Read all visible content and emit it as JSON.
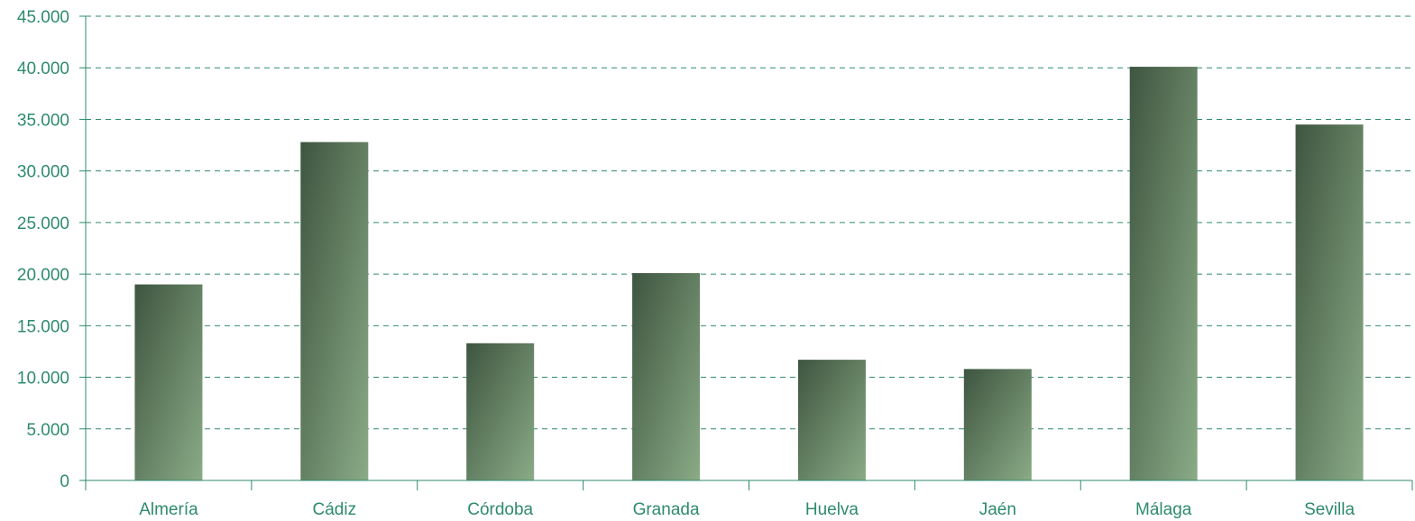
{
  "chart_data": {
    "type": "bar",
    "categories": [
      "Almería",
      "Cádiz",
      "Córdoba",
      "Granada",
      "Huelva",
      "Jaén",
      "Málaga",
      "Sevilla"
    ],
    "values": [
      19000,
      32800,
      13300,
      20100,
      11700,
      10800,
      40100,
      34500
    ],
    "ylim": [
      0,
      45000
    ],
    "yticks": [
      0,
      5000,
      10000,
      15000,
      20000,
      25000,
      30000,
      35000,
      40000,
      45000
    ],
    "ytick_labels": [
      "0",
      "5.000",
      "10.000",
      "15.000",
      "20.000",
      "25.000",
      "30.000",
      "35.000",
      "40.000",
      "45.000"
    ],
    "grid": true,
    "legend": "none",
    "colors": {
      "axis": "#2e8b6b",
      "grid": "#2e8b6b",
      "label": "#2e8b6b",
      "bar_dark": "#3e5540",
      "bar_light": "#8aab86"
    }
  }
}
